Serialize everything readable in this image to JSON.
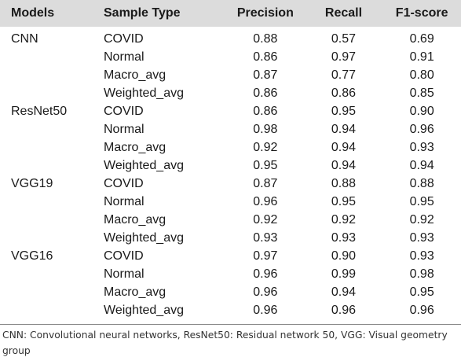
{
  "table": {
    "headers": [
      "Models",
      "Sample Type",
      "Precision",
      "Recall",
      "F1-score"
    ],
    "rows": [
      {
        "model": "CNN",
        "type": "COVID",
        "precision": "0.88",
        "recall": "0.57",
        "f1": "0.69"
      },
      {
        "model": "",
        "type": "Normal",
        "precision": "0.86",
        "recall": "0.97",
        "f1": "0.91"
      },
      {
        "model": "",
        "type": "Macro_avg",
        "precision": "0.87",
        "recall": "0.77",
        "f1": "0.80"
      },
      {
        "model": "",
        "type": "Weighted_avg",
        "precision": "0.86",
        "recall": "0.86",
        "f1": "0.85"
      },
      {
        "model": "ResNet50",
        "type": "COVID",
        "precision": "0.86",
        "recall": "0.95",
        "f1": "0.90"
      },
      {
        "model": "",
        "type": "Normal",
        "precision": "0.98",
        "recall": "0.94",
        "f1": "0.96"
      },
      {
        "model": "",
        "type": "Macro_avg",
        "precision": "0.92",
        "recall": "0.94",
        "f1": "0.93"
      },
      {
        "model": "",
        "type": "Weighted_avg",
        "precision": "0.95",
        "recall": "0.94",
        "f1": "0.94"
      },
      {
        "model": "VGG19",
        "type": "COVID",
        "precision": "0.87",
        "recall": "0.88",
        "f1": "0.88"
      },
      {
        "model": "",
        "type": "Normal",
        "precision": "0.96",
        "recall": "0.95",
        "f1": "0.95"
      },
      {
        "model": "",
        "type": "Macro_avg",
        "precision": "0.92",
        "recall": "0.92",
        "f1": "0.92"
      },
      {
        "model": "",
        "type": "Weighted_avg",
        "precision": "0.93",
        "recall": "0.93",
        "f1": "0.93"
      },
      {
        "model": "VGG16",
        "type": "COVID",
        "precision": "0.97",
        "recall": "0.90",
        "f1": "0.93"
      },
      {
        "model": "",
        "type": "Normal",
        "precision": "0.96",
        "recall": "0.99",
        "f1": "0.98"
      },
      {
        "model": "",
        "type": "Macro_avg",
        "precision": "0.96",
        "recall": "0.94",
        "f1": "0.95"
      },
      {
        "model": "",
        "type": "Weighted_avg",
        "precision": "0.96",
        "recall": "0.96",
        "f1": "0.96"
      }
    ]
  },
  "footnote": "CNN: Convolutional neural networks, ResNet50: Residual network 50, VGG: Visual geometry group",
  "colors": {
    "header_bg": "#dcdcdc",
    "rule": "#8a8a8a",
    "text": "#1a1a1a"
  }
}
